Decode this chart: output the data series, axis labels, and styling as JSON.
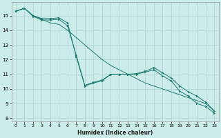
{
  "xlabel": "Humidex (Indice chaleur)",
  "bg_color": "#ccecea",
  "grid_color": "#b0d8d5",
  "line_color": "#1a7a6e",
  "xlim": [
    -0.5,
    23.5
  ],
  "ylim": [
    7.8,
    15.9
  ],
  "yticks": [
    8,
    9,
    10,
    11,
    12,
    13,
    14,
    15
  ],
  "xticks": [
    0,
    1,
    2,
    3,
    4,
    5,
    6,
    7,
    8,
    9,
    10,
    11,
    12,
    13,
    14,
    15,
    16,
    17,
    18,
    19,
    20,
    21,
    22,
    23
  ],
  "line_straight_x": [
    0,
    1,
    2,
    3,
    4,
    5,
    6,
    7,
    8,
    9,
    10,
    11,
    12,
    13,
    14,
    15,
    16,
    17,
    18,
    19,
    20,
    21,
    22,
    23
  ],
  "line_straight_y": [
    15.3,
    15.5,
    15.0,
    14.75,
    14.5,
    14.4,
    14.0,
    13.5,
    13.0,
    12.5,
    12.0,
    11.6,
    11.3,
    11.0,
    10.7,
    10.4,
    10.2,
    10.0,
    9.8,
    9.6,
    9.4,
    9.2,
    9.0,
    8.5
  ],
  "line_dip1_x": [
    0,
    1,
    2,
    3,
    4,
    5,
    6,
    7,
    8,
    9,
    10,
    11,
    12,
    13,
    14,
    15,
    16,
    17,
    18,
    19,
    20,
    21,
    22,
    23
  ],
  "line_dip1_y": [
    15.3,
    15.5,
    15.0,
    14.8,
    14.8,
    14.85,
    14.5,
    12.2,
    10.2,
    10.4,
    10.55,
    11.0,
    11.0,
    11.0,
    11.05,
    11.2,
    11.45,
    11.1,
    10.75,
    10.2,
    9.8,
    9.5,
    9.1,
    8.5
  ],
  "line_dip2_x": [
    0,
    1,
    2,
    3,
    4,
    5,
    6,
    7,
    8,
    9,
    10,
    11,
    12,
    13,
    14,
    15,
    16,
    17,
    18,
    19,
    20,
    21,
    22,
    23
  ],
  "line_dip2_y": [
    15.3,
    15.5,
    14.95,
    14.7,
    14.7,
    14.75,
    14.3,
    12.3,
    10.25,
    10.45,
    10.6,
    11.0,
    11.0,
    11.0,
    11.0,
    11.15,
    11.3,
    10.9,
    10.55,
    9.85,
    9.5,
    9.0,
    8.8,
    8.35
  ]
}
